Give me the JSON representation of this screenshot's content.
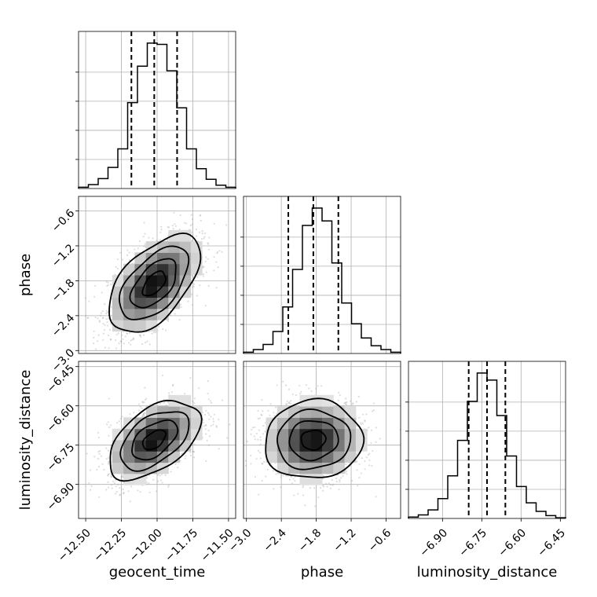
{
  "chart_data": {
    "type": "corner",
    "parameters": [
      {
        "name": "geocent_time",
        "label": "geocent_time",
        "range": [
          -12.55,
          -11.45
        ],
        "ticks": [
          -12.5,
          -12.25,
          -12.0,
          -11.75,
          -11.5
        ],
        "tick_labels": [
          "−12.50",
          "−12.25",
          "−12.00",
          "−11.75",
          "−11.50"
        ],
        "mean": -12.02,
        "sd": 0.16,
        "quantiles": [
          -12.18,
          -12.02,
          -11.86
        ],
        "hist_counts": [
          2,
          6,
          15,
          32,
          60,
          130,
          185,
          220,
          218,
          178,
          122,
          60,
          30,
          14,
          5,
          2
        ]
      },
      {
        "name": "phase",
        "label": "phase",
        "range": [
          -3.05,
          -0.35
        ],
        "ticks": [
          -3.0,
          -2.4,
          -1.8,
          -1.2,
          -0.6
        ],
        "tick_labels": [
          "−3.0",
          "−2.4",
          "−1.8",
          "−1.2",
          "−0.6"
        ],
        "mean": -1.85,
        "sd": 0.42,
        "quantiles": [
          -2.28,
          -1.85,
          -1.42
        ],
        "hist_counts": [
          2,
          6,
          14,
          34,
          72,
          130,
          198,
          225,
          205,
          140,
          78,
          46,
          24,
          12,
          6,
          2
        ]
      },
      {
        "name": "luminosity_distance",
        "label": "luminosity_distance",
        "range": [
          -7.03,
          -6.43
        ],
        "ticks": [
          -6.9,
          -6.75,
          -6.6,
          -6.45
        ],
        "tick_labels": [
          "−6.90",
          "−6.75",
          "−6.60",
          "−6.45"
        ],
        "mean": -6.73,
        "sd": 0.075,
        "quantiles": [
          -6.8,
          -6.73,
          -6.66
        ],
        "hist_counts": [
          2,
          5,
          12,
          28,
          60,
          110,
          165,
          205,
          195,
          145,
          88,
          45,
          22,
          10,
          4,
          1
        ]
      }
    ],
    "correlations": {
      "geocent_time__phase": 0.55,
      "geocent_time__luminosity_distance": 0.5,
      "phase__luminosity_distance": 0.05
    },
    "contour_levels_sigma": [
      0.5,
      1.0,
      1.5,
      2.0
    ],
    "grid": true,
    "colors": {
      "line": "#000000",
      "scatter": "#9e9e9e",
      "grid": "#b0b0b0"
    }
  }
}
